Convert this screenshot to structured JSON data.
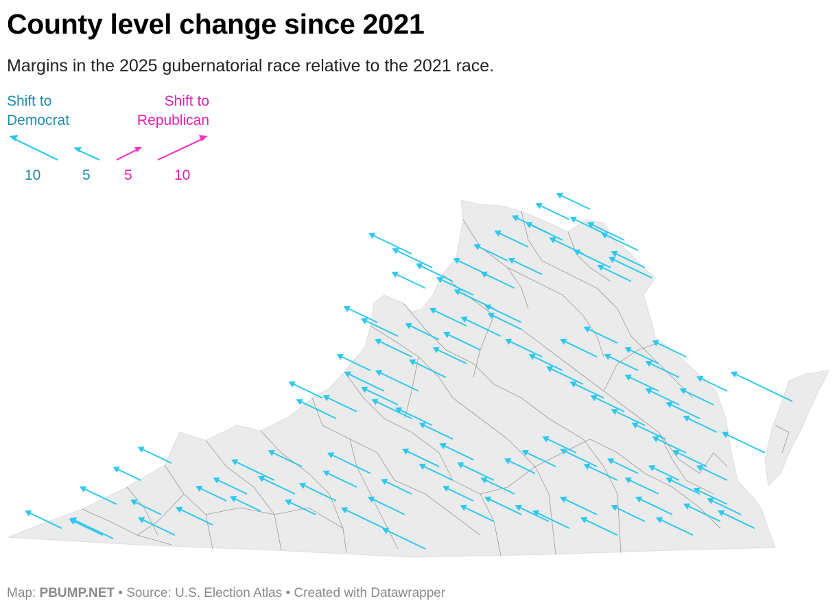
{
  "title": "County level change since 2021",
  "subtitle": "Margins in the 2025 gubernatorial race relative to the 2021 race.",
  "legend": {
    "dem_label_line1": "Shift to",
    "dem_label_line2": "Democrat",
    "rep_label_line1": "Shift to",
    "rep_label_line2": "Republican",
    "scale": [
      {
        "party": "dem",
        "value": "10"
      },
      {
        "party": "dem",
        "value": "5"
      },
      {
        "party": "rep",
        "value": "5"
      },
      {
        "party": "rep",
        "value": "10"
      }
    ],
    "dem_color": "#2dc8ee",
    "rep_color": "#f03ac0"
  },
  "map": {
    "state": "Virginia",
    "land_color": "#ebebeb",
    "border_color": "#8f8f8f"
  },
  "footer": {
    "prefix": "Map: ",
    "brand": "PBUMP.NET",
    "rest": " • Source: U.S. Election Atlas • Created with Datawrapper"
  }
}
